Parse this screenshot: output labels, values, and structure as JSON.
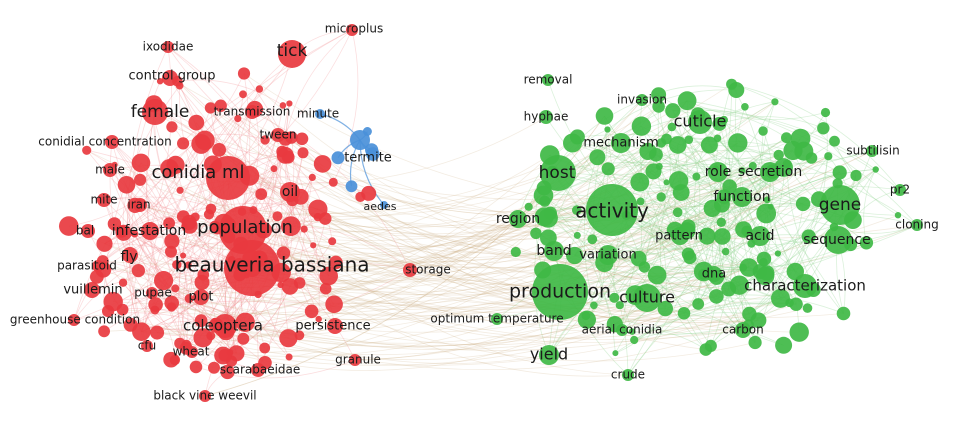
{
  "colors": {
    "red_cluster": "#e8393f",
    "green_cluster": "#3fb845",
    "blue_cluster": "#4a90d9",
    "red_link": "#f08a8c",
    "green_link": "#8fd38f",
    "bridge_link": "#c9a77a"
  },
  "network": {
    "clusters": [
      "red",
      "green",
      "blue"
    ],
    "labels": {
      "microplus": "microplus",
      "ixodidae": "ixodidae",
      "tick": "tick",
      "control_group": "control group",
      "female": "female",
      "transmission": "transmission",
      "minute": "minute",
      "tween": "tween",
      "conidial_concentration": "conidial concentration",
      "termite": "termite",
      "male": "male",
      "conidia_ml": "conidia ml",
      "oil": "oil",
      "mite": "mite",
      "iran": "iran",
      "aedes": "aedes",
      "bal": "bal",
      "infestation": "infestation",
      "population": "population",
      "fly": "fly",
      "parasitoid": "parasitoid",
      "beauveria_bassiana": "beauveria bassiana",
      "storage": "storage",
      "vuillemin": "vuillemin",
      "pupae": "pupae",
      "plot": "plot",
      "greenhouse_condition": "greenhouse condition",
      "coleoptera": "coleoptera",
      "persistence": "persistence",
      "cfu": "cfu",
      "wheat": "wheat",
      "granule": "granule",
      "scarabaeidae": "scarabaeidae",
      "black_vine_weevil": "black vine weevil",
      "removal": "removal",
      "invasion": "invasion",
      "hyphae": "hyphae",
      "cuticle": "cuticle",
      "mechanism": "mechanism",
      "subtilisin": "subtilisin",
      "host": "host",
      "role": "role",
      "secretion": "secretion",
      "pr2": "pr2",
      "function": "function",
      "activity": "activity",
      "gene": "gene",
      "cloning": "cloning",
      "region": "region",
      "pattern": "pattern",
      "acid": "acid",
      "sequence": "sequence",
      "band": "band",
      "variation": "variation",
      "dna": "dna",
      "characterization": "characterization",
      "production": "production",
      "culture": "culture",
      "optimum_temperature": "optimum temperature",
      "aerial_conidia": "aerial conidia",
      "carbon": "carbon",
      "yield": "yield",
      "crude": "crude"
    }
  }
}
